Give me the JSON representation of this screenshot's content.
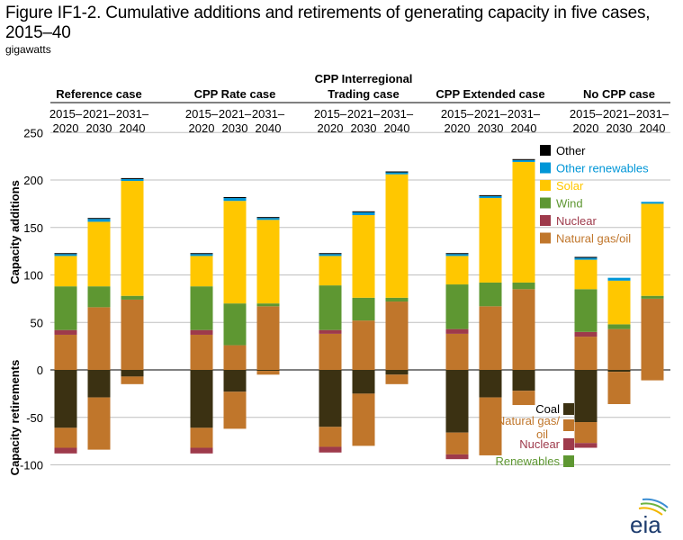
{
  "title": "Figure IF1-2. Cumulative additions and retirements of generating capacity in five cases, 2015–40",
  "units": "gigawatts",
  "logo_text": "eia",
  "chart_data": {
    "type": "bar",
    "stacked": true,
    "diverging": true,
    "ylim": [
      -100,
      250
    ],
    "yticks": [
      -100,
      -50,
      0,
      50,
      100,
      150,
      200,
      250
    ],
    "ylabel_top": "Capacity additions",
    "ylabel_bottom": "Capacity retirements",
    "grid": true,
    "legend_placement": "right",
    "period_labels": [
      {
        "top": "2015–",
        "bottom": "2020"
      },
      {
        "top": "2021–",
        "bottom": "2030"
      },
      {
        "top": "2031–",
        "bottom": "2040"
      }
    ],
    "addition_series": [
      {
        "name": "Natural gas/oil",
        "key": "ng",
        "color": "#c0762b"
      },
      {
        "name": "Nuclear",
        "key": "nuc",
        "color": "#9e3a4b"
      },
      {
        "name": "Wind",
        "key": "wind",
        "color": "#5e9732"
      },
      {
        "name": "Solar",
        "key": "solar",
        "color": "#ffc700"
      },
      {
        "name": "Other renewables",
        "key": "oren",
        "color": "#0096d7"
      },
      {
        "name": "Other",
        "key": "other",
        "color": "#000000"
      }
    ],
    "retirement_series": [
      {
        "name": "Coal",
        "key": "coal",
        "color": "#3b3112"
      },
      {
        "name": "Natural gas/\noil",
        "key": "ng",
        "color": "#c0762b"
      },
      {
        "name": "Nuclear",
        "key": "nuc",
        "color": "#9e3a4b"
      },
      {
        "name": "Renewables",
        "key": "ren",
        "color": "#5e9732"
      }
    ],
    "cases": [
      {
        "name": "Reference case",
        "periods": [
          {
            "add": {
              "ng": 37,
              "nuc": 5,
              "wind": 46,
              "solar": 32,
              "oren": 2,
              "other": 1
            },
            "ret": {
              "coal": 61,
              "ng": 21,
              "nuc": 6,
              "ren": 0
            }
          },
          {
            "add": {
              "ng": 66,
              "nuc": 0,
              "wind": 22,
              "solar": 68,
              "oren": 3,
              "other": 1
            },
            "ret": {
              "coal": 29,
              "ng": 55,
              "nuc": 0,
              "ren": 0
            }
          },
          {
            "add": {
              "ng": 74,
              "nuc": 0,
              "wind": 4,
              "solar": 121,
              "oren": 2,
              "other": 1
            },
            "ret": {
              "coal": 7,
              "ng": 8,
              "nuc": 0,
              "ren": 0
            }
          }
        ]
      },
      {
        "name": "CPP Rate case",
        "periods": [
          {
            "add": {
              "ng": 37,
              "nuc": 5,
              "wind": 46,
              "solar": 32,
              "oren": 2,
              "other": 1
            },
            "ret": {
              "coal": 61,
              "ng": 21,
              "nuc": 6,
              "ren": 0
            }
          },
          {
            "add": {
              "ng": 26,
              "nuc": 0,
              "wind": 44,
              "solar": 108,
              "oren": 3,
              "other": 1
            },
            "ret": {
              "coal": 23,
              "ng": 39,
              "nuc": 0,
              "ren": 0
            }
          },
          {
            "add": {
              "ng": 67,
              "nuc": 0,
              "wind": 3,
              "solar": 88,
              "oren": 2,
              "other": 1
            },
            "ret": {
              "coal": 1,
              "ng": 4,
              "nuc": 0,
              "ren": 0
            }
          }
        ]
      },
      {
        "name": "CPP Interregional Trading case",
        "periods": [
          {
            "add": {
              "ng": 38,
              "nuc": 4,
              "wind": 47,
              "solar": 31,
              "oren": 2,
              "other": 1
            },
            "ret": {
              "coal": 60,
              "ng": 21,
              "nuc": 6,
              "ren": 0
            }
          },
          {
            "add": {
              "ng": 52,
              "nuc": 0,
              "wind": 24,
              "solar": 87,
              "oren": 3,
              "other": 1
            },
            "ret": {
              "coal": 25,
              "ng": 55,
              "nuc": 0,
              "ren": 0
            }
          },
          {
            "add": {
              "ng": 72,
              "nuc": 0,
              "wind": 4,
              "solar": 130,
              "oren": 2,
              "other": 1
            },
            "ret": {
              "coal": 5,
              "ng": 10,
              "nuc": 0,
              "ren": 0
            }
          }
        ]
      },
      {
        "name": "CPP Extended case",
        "periods": [
          {
            "add": {
              "ng": 38,
              "nuc": 5,
              "wind": 47,
              "solar": 30,
              "oren": 2,
              "other": 1
            },
            "ret": {
              "coal": 66,
              "ng": 23,
              "nuc": 5,
              "ren": 0
            }
          },
          {
            "add": {
              "ng": 67,
              "nuc": 0,
              "wind": 25,
              "solar": 89,
              "oren": 2,
              "other": 1
            },
            "ret": {
              "coal": 29,
              "ng": 61,
              "nuc": 0,
              "ren": 0
            }
          },
          {
            "add": {
              "ng": 85,
              "nuc": 0,
              "wind": 7,
              "solar": 127,
              "oren": 2,
              "other": 1
            },
            "ret": {
              "coal": 22,
              "ng": 15,
              "nuc": 0,
              "ren": 0
            }
          }
        ]
      },
      {
        "name": "No CPP case",
        "periods": [
          {
            "add": {
              "ng": 35,
              "nuc": 5,
              "wind": 45,
              "solar": 31,
              "oren": 2,
              "other": 1
            },
            "ret": {
              "coal": 55,
              "ng": 22,
              "nuc": 5,
              "ren": 0
            }
          },
          {
            "add": {
              "ng": 43,
              "nuc": 0,
              "wind": 5,
              "solar": 46,
              "oren": 3,
              "other": 0
            },
            "ret": {
              "coal": 2,
              "ng": 34,
              "nuc": 0,
              "ren": 0
            }
          },
          {
            "add": {
              "ng": 75,
              "nuc": 0,
              "wind": 3,
              "solar": 97,
              "oren": 2,
              "other": 0
            },
            "ret": {
              "coal": 0,
              "ng": 11,
              "nuc": 0,
              "ren": 0
            }
          }
        ]
      }
    ]
  }
}
